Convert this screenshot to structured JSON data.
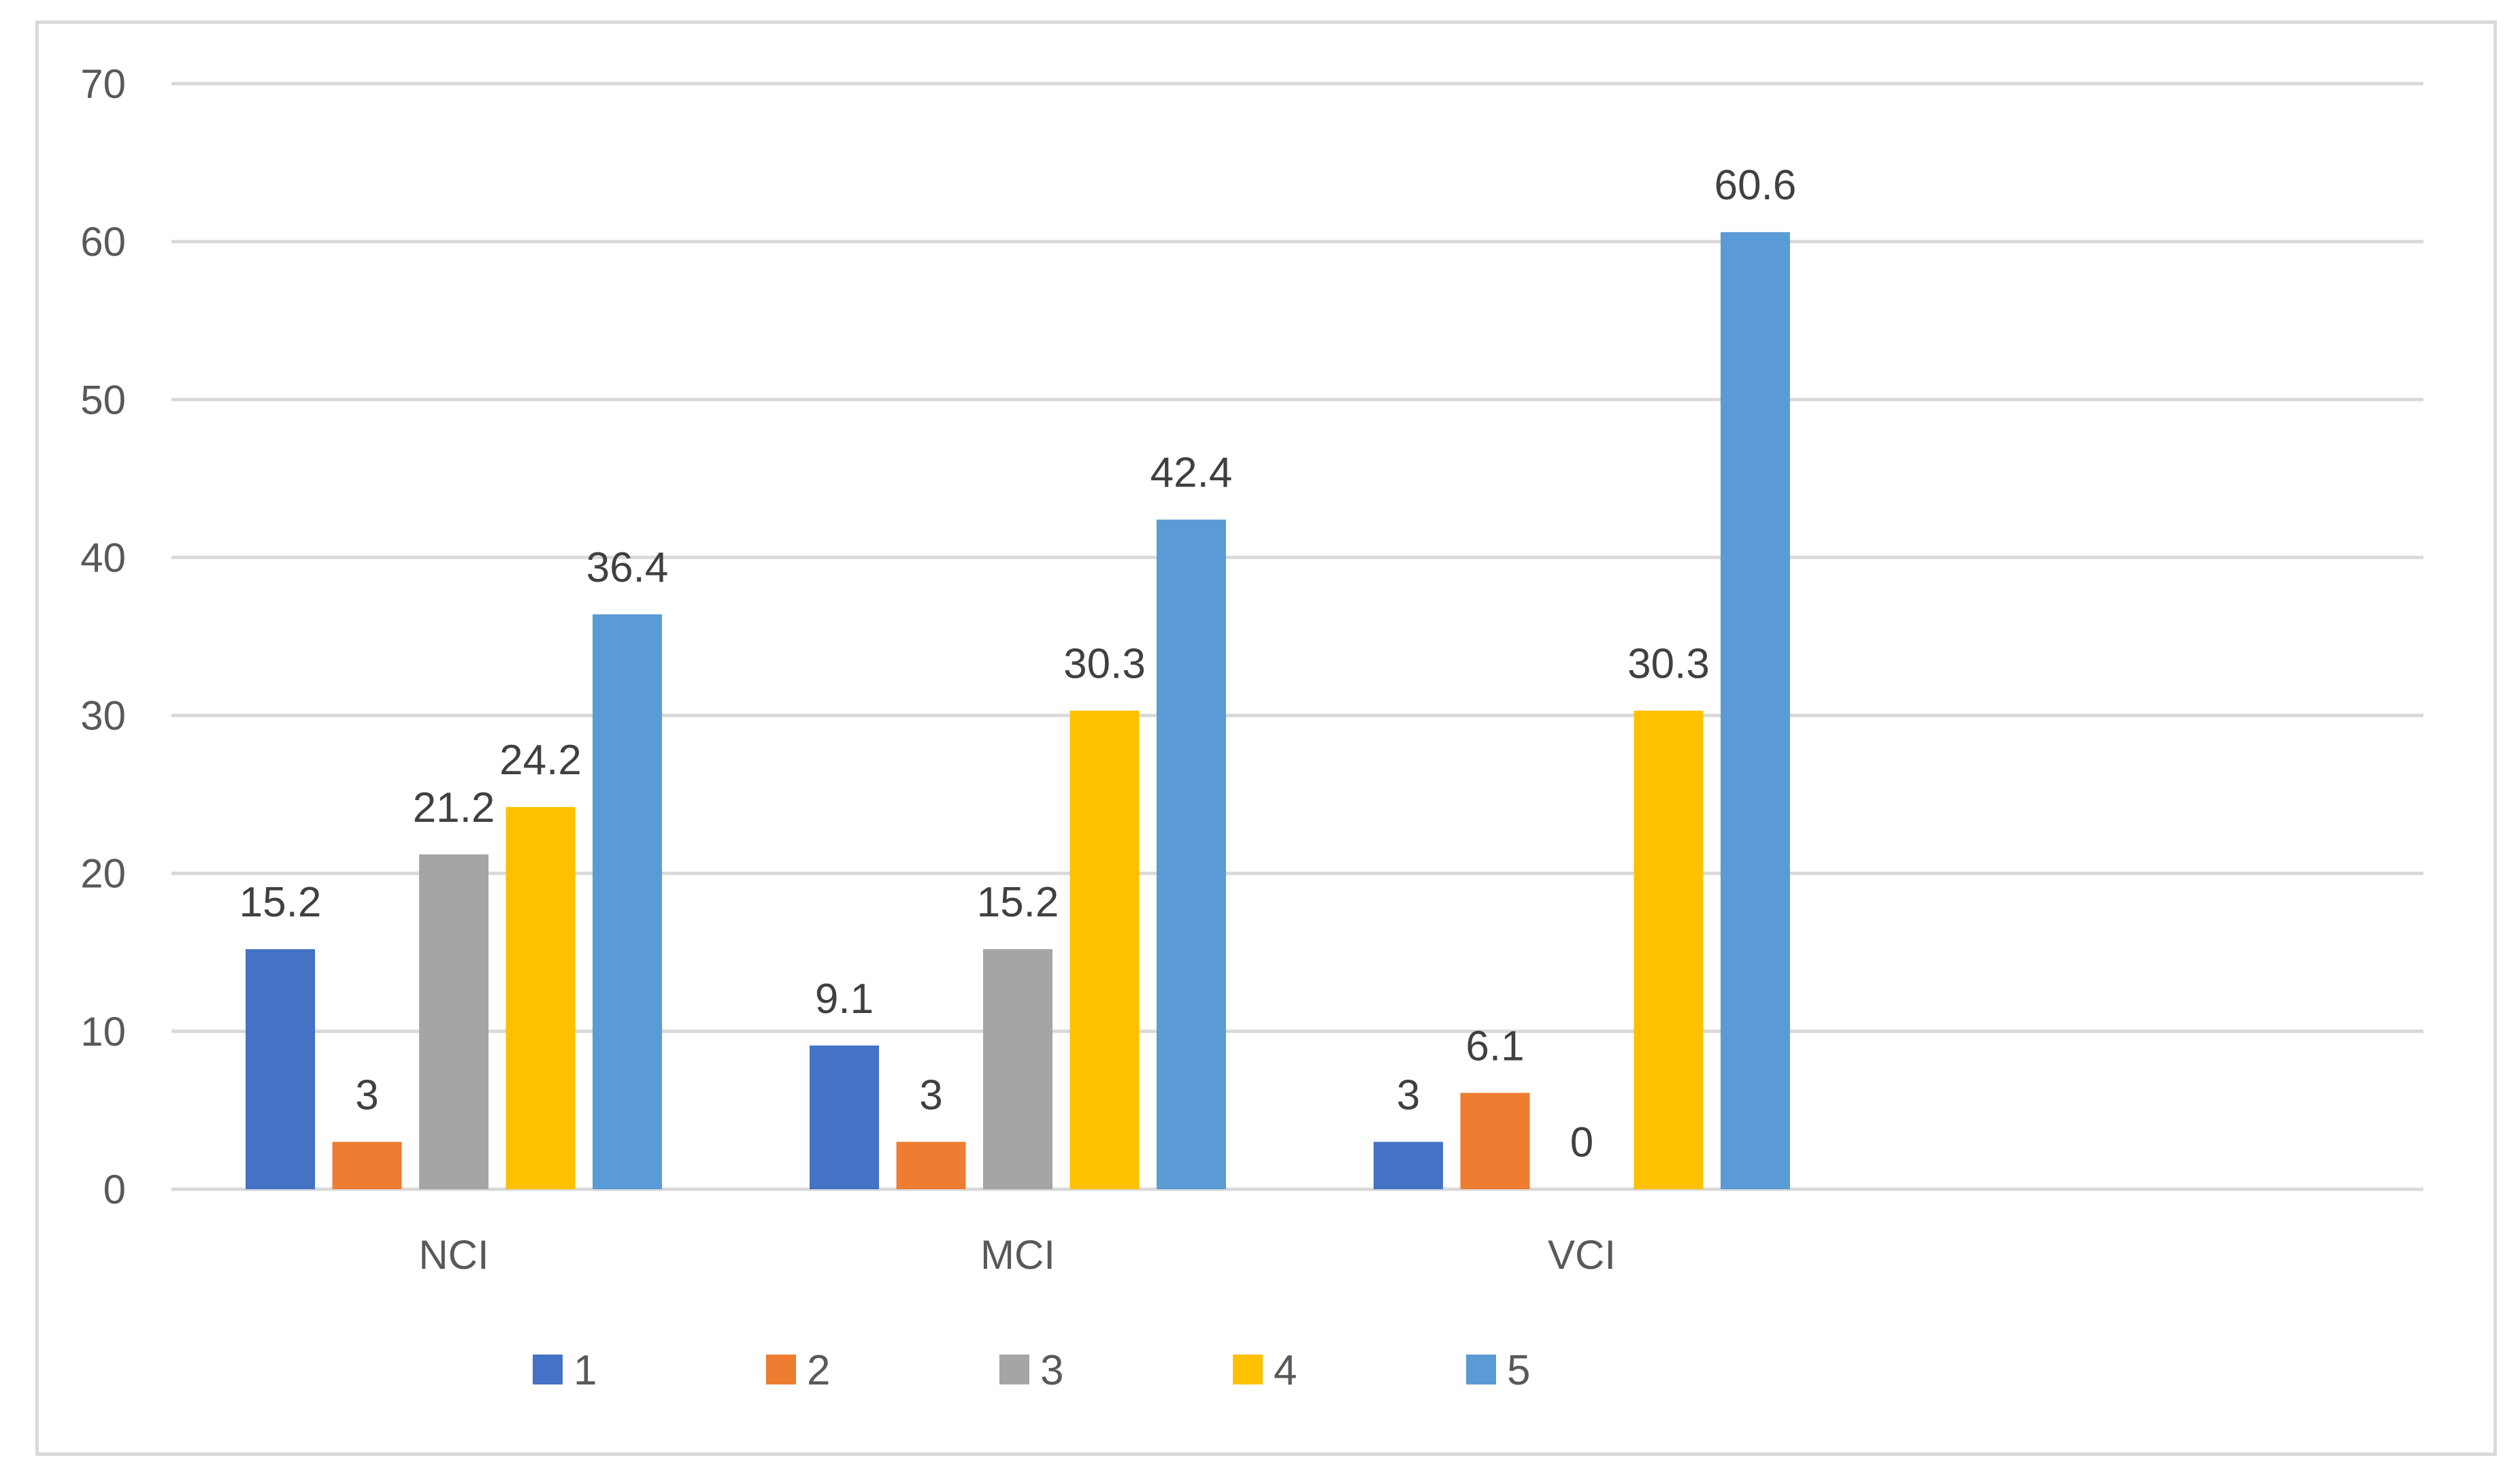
{
  "chart_data": {
    "type": "bar",
    "title": "",
    "xlabel": "",
    "ylabel": "",
    "categories": [
      "NCI",
      "MCI",
      "VCI"
    ],
    "ylim": [
      0,
      70
    ],
    "yticks": [
      0,
      10,
      20,
      30,
      40,
      50,
      60,
      70
    ],
    "grid": true,
    "legend_position": "bottom",
    "series": [
      {
        "name": "1",
        "color": "#4472c4",
        "values": [
          15.2,
          9.1,
          3
        ]
      },
      {
        "name": "2",
        "color": "#ed7d31",
        "values": [
          3,
          3,
          6.1
        ]
      },
      {
        "name": "3",
        "color": "#a5a5a5",
        "values": [
          21.2,
          15.2,
          0
        ]
      },
      {
        "name": "4",
        "color": "#ffc000",
        "values": [
          24.2,
          30.3,
          30.3
        ]
      },
      {
        "name": "5",
        "color": "#5b9bd5",
        "values": [
          36.4,
          42.4,
          60.6
        ]
      }
    ]
  }
}
